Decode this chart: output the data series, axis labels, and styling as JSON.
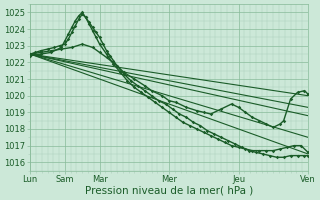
{
  "background_color": "#cce8d8",
  "plot_bg_color": "#cce8d8",
  "grid_major_color": "#88bb99",
  "grid_minor_color": "#aaccbb",
  "line_color": "#1a5c28",
  "xlabel": "Pression niveau de la mer( hPa )",
  "ylim": [
    1015.5,
    1025.5
  ],
  "yticks": [
    1016,
    1017,
    1018,
    1019,
    1020,
    1021,
    1022,
    1023,
    1024,
    1025
  ],
  "xlim": [
    0,
    8
  ],
  "xtick_positions": [
    0,
    1,
    2,
    4,
    6,
    8
  ],
  "xtick_labels": [
    "Lun",
    "Sam",
    "Mar",
    "Mer",
    "Jeu",
    "Ven"
  ],
  "figsize": [
    3.2,
    2.0
  ],
  "dpi": 100,
  "series": [
    {
      "x": [
        0.0,
        0.15,
        0.3,
        0.5,
        0.7,
        0.85,
        1.0,
        1.1,
        1.2,
        1.3,
        1.4,
        1.5,
        1.6,
        1.7,
        1.8,
        1.9,
        2.0,
        2.1,
        2.2,
        2.3,
        2.4,
        2.5,
        2.7,
        2.9,
        3.1,
        3.3,
        3.5,
        3.7,
        3.9,
        4.1,
        4.3,
        4.5,
        4.7,
        4.9,
        5.1,
        5.3,
        5.5,
        5.7,
        5.9,
        6.1,
        6.3,
        6.5,
        6.7,
        6.9,
        7.1,
        7.3,
        7.5,
        7.7,
        7.9,
        8.0
      ],
      "y": [
        1022.5,
        1022.6,
        1022.7,
        1022.8,
        1022.9,
        1023.0,
        1023.1,
        1023.4,
        1023.8,
        1024.2,
        1024.6,
        1024.9,
        1024.7,
        1024.4,
        1024.1,
        1023.8,
        1023.5,
        1023.1,
        1022.7,
        1022.4,
        1022.1,
        1021.8,
        1021.3,
        1020.9,
        1020.6,
        1020.3,
        1020.0,
        1019.7,
        1019.5,
        1019.2,
        1018.9,
        1018.7,
        1018.4,
        1018.2,
        1017.9,
        1017.7,
        1017.5,
        1017.3,
        1017.1,
        1016.9,
        1016.7,
        1016.6,
        1016.5,
        1016.4,
        1016.3,
        1016.3,
        1016.4,
        1016.4,
        1016.4,
        1016.4
      ],
      "style": "marker_line",
      "lw": 1.0
    },
    {
      "x": [
        0.0,
        0.3,
        0.6,
        0.9,
        1.0,
        1.1,
        1.2,
        1.3,
        1.4,
        1.5,
        1.6,
        1.7,
        1.8,
        1.9,
        2.0,
        2.2,
        2.4,
        2.6,
        2.8,
        3.0,
        3.2,
        3.4,
        3.6,
        3.8,
        4.0,
        4.2,
        4.4,
        4.6,
        4.8,
        5.0,
        5.2,
        5.4,
        5.6,
        5.8,
        6.0,
        6.2,
        6.4,
        6.6,
        6.8,
        7.0,
        7.2,
        7.4,
        7.6,
        7.8,
        8.0
      ],
      "y": [
        1022.4,
        1022.5,
        1022.6,
        1022.9,
        1023.3,
        1023.7,
        1024.1,
        1024.5,
        1024.8,
        1025.0,
        1024.7,
        1024.3,
        1023.9,
        1023.5,
        1023.1,
        1022.5,
        1021.9,
        1021.4,
        1020.9,
        1020.5,
        1020.2,
        1019.9,
        1019.6,
        1019.3,
        1019.0,
        1018.7,
        1018.4,
        1018.2,
        1018.0,
        1017.8,
        1017.6,
        1017.4,
        1017.2,
        1017.0,
        1016.9,
        1016.8,
        1016.7,
        1016.7,
        1016.7,
        1016.7,
        1016.8,
        1016.9,
        1017.0,
        1017.0,
        1016.6
      ],
      "style": "marker_line",
      "lw": 1.0
    },
    {
      "x": [
        0.0,
        0.3,
        0.6,
        0.9,
        1.2,
        1.5,
        1.8,
        2.0,
        2.2,
        2.5,
        2.7,
        3.0,
        3.3,
        3.5,
        3.8,
        4.0,
        4.2,
        4.5,
        4.8,
        5.0,
        5.2,
        5.5,
        5.8,
        6.0,
        6.2,
        6.4,
        6.6,
        6.8,
        7.0,
        7.2,
        7.3,
        7.5,
        7.7,
        7.9,
        8.0
      ],
      "y": [
        1022.5,
        1022.6,
        1022.7,
        1022.8,
        1022.9,
        1023.1,
        1022.9,
        1022.6,
        1022.3,
        1021.8,
        1021.4,
        1021.0,
        1020.6,
        1020.3,
        1020.0,
        1019.7,
        1019.6,
        1019.3,
        1019.1,
        1019.0,
        1018.9,
        1019.2,
        1019.5,
        1019.3,
        1019.0,
        1018.7,
        1018.5,
        1018.3,
        1018.1,
        1018.3,
        1018.5,
        1019.8,
        1020.2,
        1020.3,
        1020.1
      ],
      "style": "marker_line",
      "lw": 1.0
    },
    {
      "x": [
        0.0,
        8.0
      ],
      "y": [
        1022.5,
        1020.0
      ],
      "style": "straight",
      "lw": 0.8
    },
    {
      "x": [
        0.0,
        8.0
      ],
      "y": [
        1022.5,
        1018.8
      ],
      "style": "straight",
      "lw": 0.8
    },
    {
      "x": [
        0.0,
        8.0
      ],
      "y": [
        1022.5,
        1017.5
      ],
      "style": "straight",
      "lw": 0.8
    },
    {
      "x": [
        0.0,
        8.0
      ],
      "y": [
        1022.5,
        1016.5
      ],
      "style": "straight",
      "lw": 0.8
    },
    {
      "x": [
        0.0,
        8.0
      ],
      "y": [
        1022.5,
        1019.3
      ],
      "style": "straight",
      "lw": 0.8
    }
  ]
}
